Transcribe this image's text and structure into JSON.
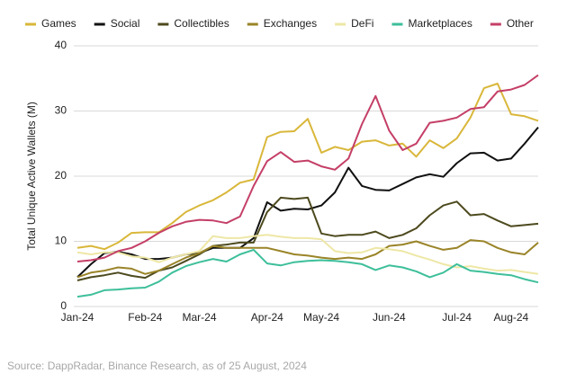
{
  "chart_data": {
    "type": "line",
    "y_label": "Total Unique Active Wallets (M)",
    "source": "Source: DappRadar, Binance Research, as of 25 August, 2024",
    "categories": [
      "Jan-24",
      null,
      null,
      null,
      null,
      "Feb-24",
      null,
      null,
      null,
      "Mar-24",
      null,
      null,
      null,
      null,
      "Apr-24",
      null,
      null,
      null,
      "May-24",
      null,
      null,
      null,
      null,
      "Jun-24",
      null,
      null,
      null,
      null,
      "Jul-24",
      null,
      null,
      null,
      "Aug-24",
      null,
      null
    ],
    "ylim": [
      0,
      40
    ],
    "yticks": [
      0,
      10,
      20,
      30,
      40
    ],
    "grid": true,
    "legend": "top",
    "series": [
      {
        "name": "Games",
        "color": "#d9b73a",
        "values": [
          9,
          9.3,
          8.8,
          9.8,
          11.3,
          11.4,
          11.4,
          12.8,
          14.5,
          15.5,
          16.3,
          17.5,
          19,
          19.5,
          26,
          26.8,
          26.9,
          28.8,
          23.6,
          24.5,
          24,
          25.3,
          25.5,
          24.7,
          25,
          23,
          25.5,
          24.3,
          25.8,
          29,
          33.5,
          34.2,
          29.5,
          29.2,
          28.5
        ]
      },
      {
        "name": "Social",
        "color": "#111111",
        "values": [
          4.5,
          6.5,
          8.2,
          8.4,
          8,
          7.3,
          7.3,
          7.5,
          8,
          8.2,
          9,
          9,
          9,
          10.5,
          16,
          14.7,
          15,
          14.9,
          15.5,
          17.5,
          21.3,
          18.5,
          17.9,
          17.8,
          18.8,
          19.8,
          20.3,
          19.9,
          22,
          23.5,
          23.6,
          22.4,
          22.7,
          25,
          27.5
        ]
      },
      {
        "name": "Collectibles",
        "color": "#4d4a1e",
        "values": [
          4,
          4.5,
          4.8,
          5.2,
          4.7,
          4.4,
          5.5,
          6,
          7,
          8,
          9.3,
          9.5,
          9.8,
          9.8,
          14.5,
          16.7,
          16.5,
          16.7,
          11.2,
          10.8,
          11,
          11,
          11.5,
          10.5,
          11,
          12,
          14,
          15.5,
          16.1,
          14,
          14.2,
          13.2,
          12.3,
          12.5,
          12.7
        ]
      },
      {
        "name": "Exchanges",
        "color": "#9a8428",
        "values": [
          4.5,
          5.2,
          5.5,
          6,
          5.8,
          5,
          5.5,
          6.5,
          7.5,
          8.2,
          9.3,
          9,
          9,
          9,
          9,
          8.5,
          8,
          7.8,
          7.5,
          7.3,
          7.5,
          7.3,
          8,
          9.3,
          9.5,
          10,
          9.3,
          8.7,
          9,
          10.2,
          10,
          9,
          8.3,
          8,
          9.8
        ]
      },
      {
        "name": "DeFi",
        "color": "#eee7a6",
        "values": [
          8.3,
          8,
          8.3,
          8.3,
          7.7,
          7.5,
          6.8,
          7.5,
          8,
          8.5,
          10.8,
          10.5,
          10.5,
          10.8,
          11,
          10.7,
          10.5,
          10.5,
          10.3,
          8.5,
          8.2,
          8.3,
          9,
          8.8,
          8.5,
          7.8,
          7.2,
          6.5,
          6,
          6.2,
          5.8,
          5.5,
          5.6,
          5.3,
          5
        ]
      },
      {
        "name": "Marketplaces",
        "color": "#3dbf9a",
        "values": [
          1.5,
          1.8,
          2.5,
          2.6,
          2.8,
          2.9,
          3.8,
          5.2,
          6.2,
          6.8,
          7.3,
          6.9,
          8,
          8.7,
          6.6,
          6.3,
          6.8,
          7,
          7.1,
          7,
          6.8,
          6.5,
          5.6,
          6.3,
          6,
          5.4,
          4.5,
          5.2,
          6.5,
          5.5,
          5.3,
          5,
          4.8,
          4.2,
          3.7
        ]
      },
      {
        "name": "Other",
        "color": "#c43f67",
        "values": [
          6.9,
          7.1,
          7.5,
          8.5,
          9,
          10,
          11.3,
          12.3,
          13,
          13.3,
          13.2,
          12.8,
          13.8,
          18.5,
          22.3,
          23.7,
          22.2,
          22.4,
          21.5,
          21,
          22.7,
          28,
          32.3,
          27,
          24,
          25,
          28.2,
          28.5,
          29,
          30.3,
          30.6,
          33,
          33.3,
          34,
          35.5
        ]
      }
    ]
  }
}
